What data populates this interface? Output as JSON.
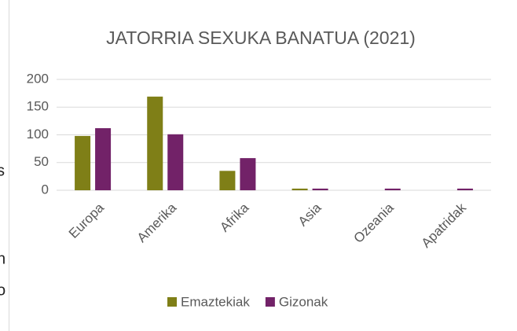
{
  "margin_text": [
    "s",
    "n",
    "o"
  ],
  "chart_data": {
    "type": "bar",
    "title": "JATORRIA SEXUKA BANATUA (2021)",
    "categories": [
      "Europa",
      "Amerika",
      "Afrika",
      "Asia",
      "Ozeania",
      "Apatridak"
    ],
    "series": [
      {
        "name": "Emaztekiak",
        "color": "#7f7f17",
        "values": [
          98,
          169,
          35,
          3,
          0,
          0
        ]
      },
      {
        "name": "Gizonak",
        "color": "#722268",
        "values": [
          112,
          101,
          58,
          3,
          3,
          3
        ]
      }
    ],
    "ylim": [
      0,
      200
    ],
    "yticks": [
      0,
      50,
      100,
      150,
      200
    ],
    "grid": true,
    "legend": "bottom"
  }
}
